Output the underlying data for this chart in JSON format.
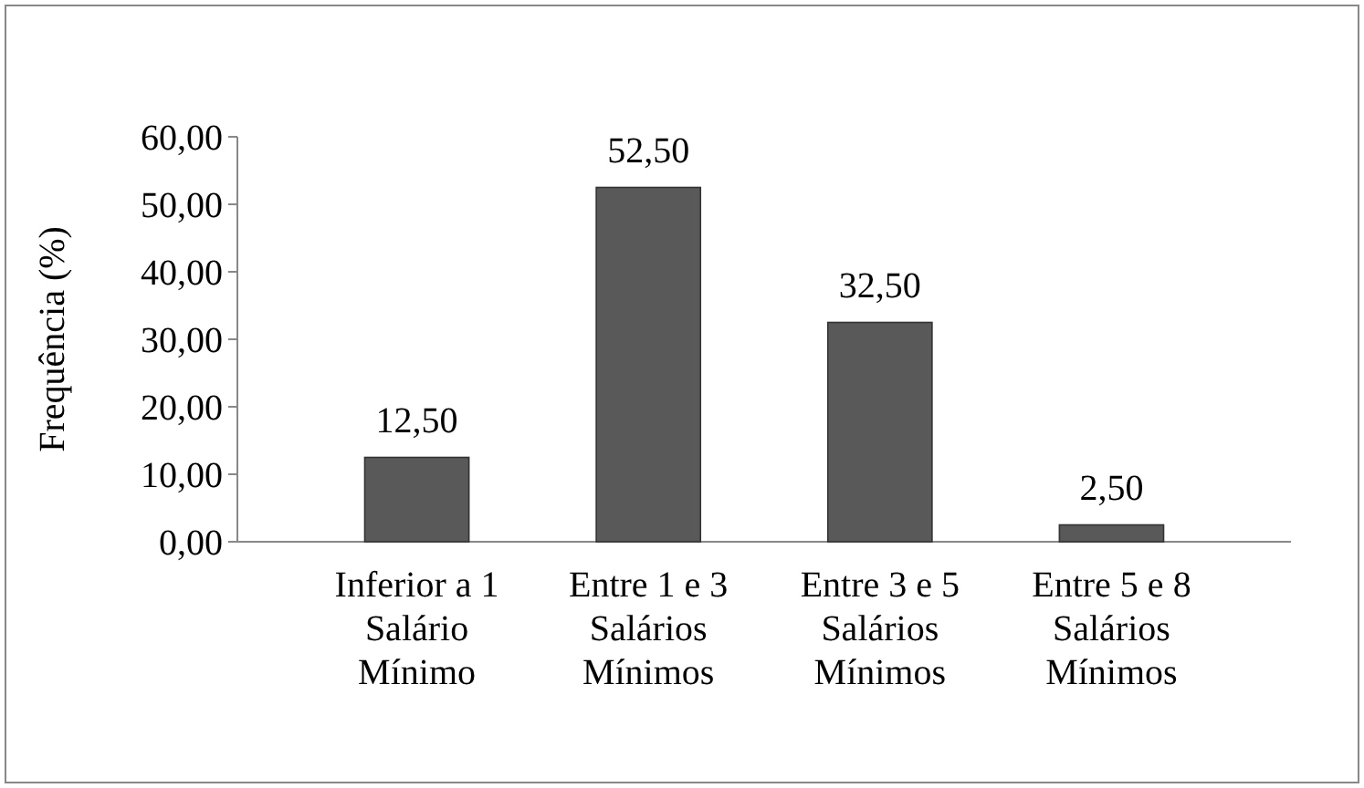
{
  "chart_data": {
    "type": "bar",
    "ylabel": "Frequência (%)",
    "categories": [
      "Inferior a 1\nSalário\nMínimo",
      "Entre 1 e 3\nSalários\nMínimos",
      "Entre 3 e 5\nSalários\nMínimos",
      "Entre 5 e 8\nSalários\nMínimos"
    ],
    "values": [
      12.5,
      52.5,
      32.5,
      2.5
    ],
    "value_labels": [
      "12,50",
      "52,50",
      "32,50",
      "2,50"
    ],
    "color": "#595959",
    "ylim": [
      0,
      60
    ],
    "yticks": [
      {
        "value": 0,
        "label": "0,00"
      },
      {
        "value": 10,
        "label": "10,00"
      },
      {
        "value": 20,
        "label": "20,00"
      },
      {
        "value": 30,
        "label": "30,00"
      },
      {
        "value": 40,
        "label": "40,00"
      },
      {
        "value": 50,
        "label": "50,00"
      },
      {
        "value": 60,
        "label": "60,00"
      }
    ],
    "grid": false
  }
}
